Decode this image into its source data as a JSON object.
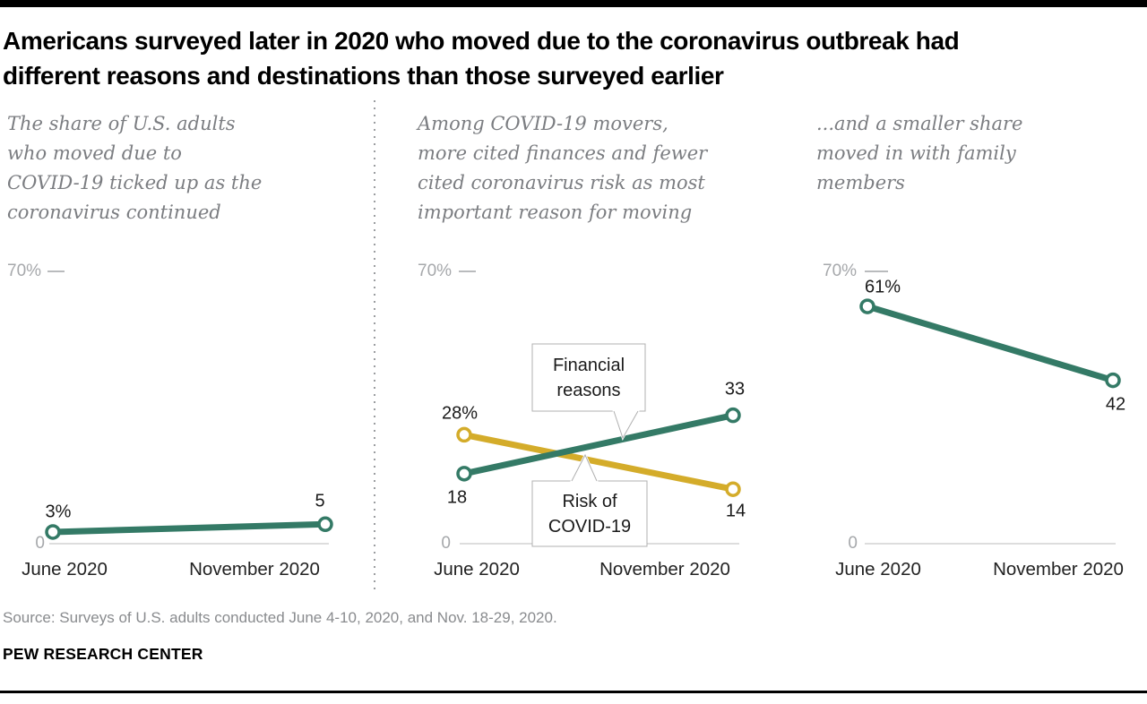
{
  "header": {
    "title": "Americans surveyed later in 2020 who moved due to the coronavirus outbreak had\ndifferent reasons and destinations than those surveyed earlier"
  },
  "panels": [
    {
      "subtitle": "The share of U.S. adults\nwho moved due to\nCOVID-19 ticked up as the\ncoronavirus continued"
    },
    {
      "subtitle": "Among COVID-19 movers,\nmore cited finances and fewer\ncited coronavirus risk as most\nimportant reason for moving"
    },
    {
      "subtitle": "...and a smaller share\nmoved in with family\nmembers"
    }
  ],
  "chart_data": [
    {
      "type": "line",
      "subtype": "slope",
      "categories": [
        "June 2020",
        "November 2020"
      ],
      "series": [
        {
          "name": "Share of U.S. adults who moved due to COVID-19",
          "color": "#347a66",
          "values": [
            3,
            5
          ],
          "point_labels": [
            "3%",
            "5"
          ]
        }
      ],
      "ylim": [
        0,
        70
      ],
      "y_axis": {
        "top_label": "70%",
        "bottom_label": "0"
      },
      "grid": "off",
      "legend": "none"
    },
    {
      "type": "line",
      "subtype": "slope",
      "categories": [
        "June 2020",
        "November 2020"
      ],
      "series": [
        {
          "name": "Financial reasons",
          "color": "#347a66",
          "values": [
            18,
            33
          ],
          "point_labels": [
            "18",
            "33"
          ]
        },
        {
          "name": "Risk of COVID-19",
          "color": "#d4ac2a",
          "values": [
            28,
            14
          ],
          "point_labels": [
            "28%",
            "14"
          ]
        }
      ],
      "ylim": [
        0,
        70
      ],
      "y_axis": {
        "top_label": "70%",
        "bottom_label": "0"
      },
      "grid": "off",
      "legend": "callouts",
      "annotations": [
        {
          "text": "Financial\nreasons"
        },
        {
          "text": "Risk of\nCOVID-19"
        }
      ]
    },
    {
      "type": "line",
      "subtype": "slope",
      "categories": [
        "June 2020",
        "November 2020"
      ],
      "series": [
        {
          "name": "Moved in with family members",
          "color": "#347a66",
          "values": [
            61,
            42
          ],
          "point_labels": [
            "61%",
            "42"
          ]
        }
      ],
      "ylim": [
        0,
        70
      ],
      "y_axis": {
        "top_label": "70%",
        "bottom_label": "0"
      },
      "grid": "off",
      "legend": "none"
    }
  ],
  "footer": {
    "source": "Source: Surveys of U.S. adults conducted June 4-10, 2020, and Nov. 18-29, 2020.",
    "brand": "PEW RESEARCH CENTER"
  },
  "colors": {
    "green": "#347a66",
    "gold": "#d4ac2a",
    "axis_gray": "#a6a8ab",
    "baseline_gray": "#d2d2d2",
    "callout_border": "#b0b0b0"
  }
}
